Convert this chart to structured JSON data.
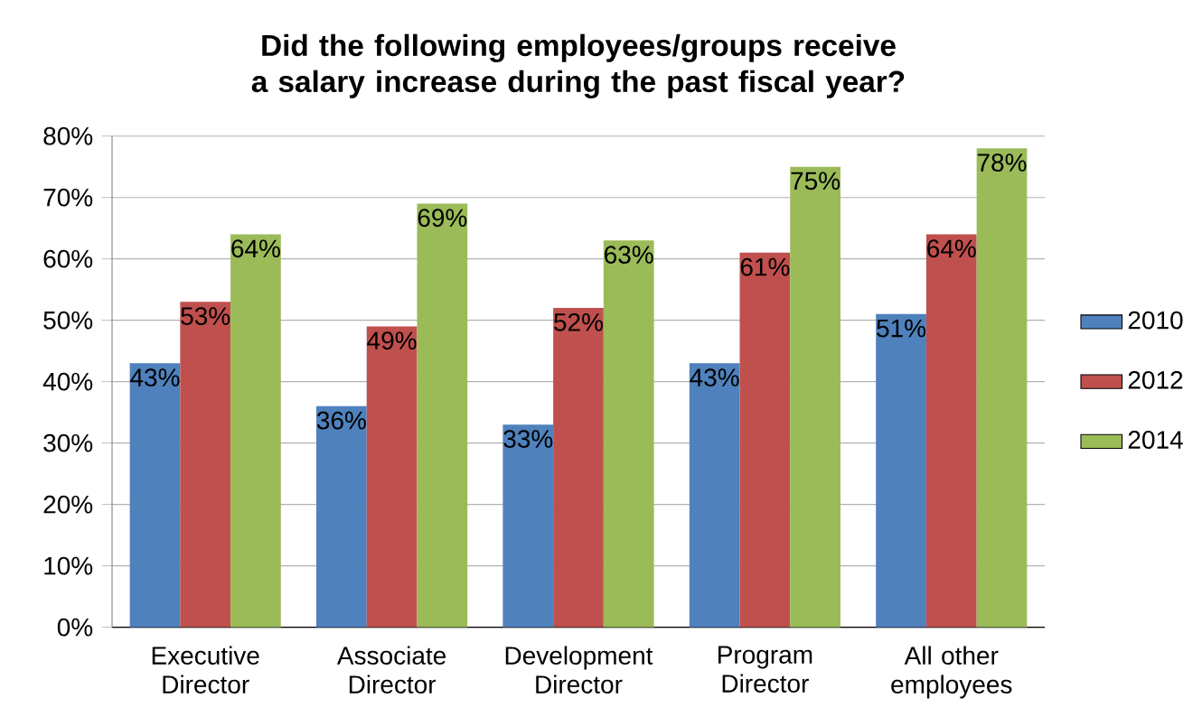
{
  "chart_data": {
    "type": "bar",
    "title": "Did the following employees/groups receive a salary increase during the past fiscal year?",
    "categories": [
      "Executive Director",
      "Associate Director",
      "Development Director",
      "Program Director",
      "All other employees"
    ],
    "series": [
      {
        "name": "2010",
        "color": "#4f81bd",
        "values": [
          43,
          36,
          33,
          43,
          51
        ],
        "value_labels": [
          "43%",
          "36%",
          "33%",
          "43%",
          "51%"
        ]
      },
      {
        "name": "2012",
        "color": "#c0504d",
        "values": [
          53,
          49,
          52,
          61,
          64
        ],
        "value_labels": [
          "53%",
          "49%",
          "52%",
          "61%",
          "64%"
        ]
      },
      {
        "name": "2014",
        "color": "#9bbb59",
        "values": [
          64,
          69,
          63,
          75,
          78
        ],
        "value_labels": [
          "64%",
          "69%",
          "63%",
          "75%",
          "78%"
        ]
      }
    ],
    "ylim": [
      0,
      80
    ],
    "yticks": [
      {
        "value": 0,
        "label": "0%"
      },
      {
        "value": 10,
        "label": "10%"
      },
      {
        "value": 20,
        "label": "20%"
      },
      {
        "value": 30,
        "label": "30%"
      },
      {
        "value": 40,
        "label": "40%"
      },
      {
        "value": 50,
        "label": "50%"
      },
      {
        "value": 60,
        "label": "60%"
      },
      {
        "value": 70,
        "label": "70%"
      },
      {
        "value": 80,
        "label": "80%"
      }
    ],
    "grid": "y",
    "legend": "right"
  }
}
